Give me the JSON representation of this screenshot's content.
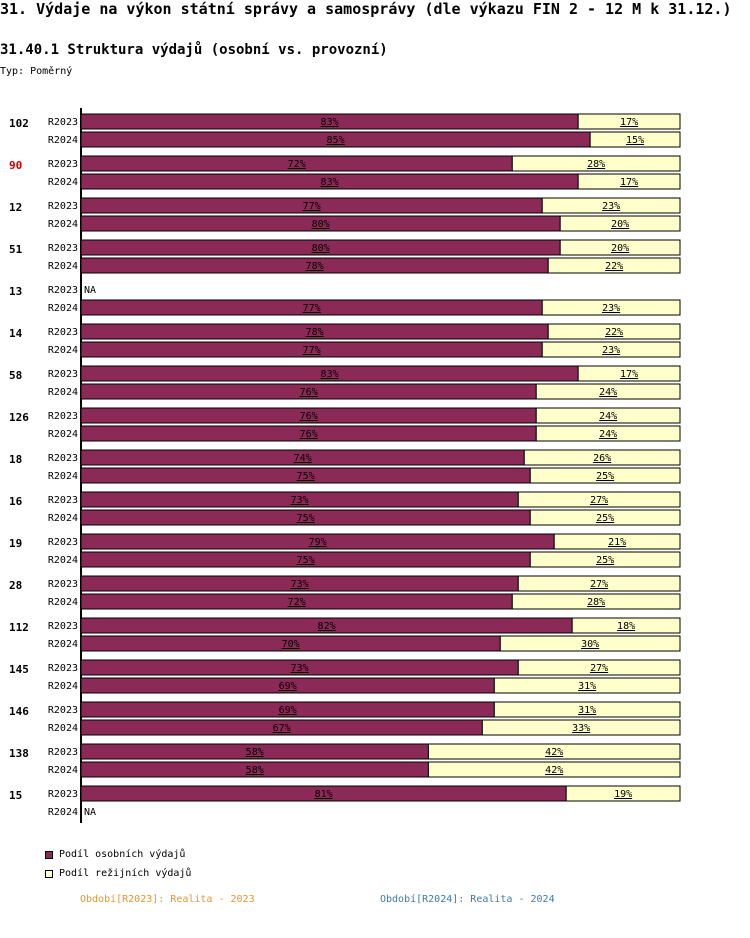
{
  "page": {
    "title": "31. Výdaje na výkon státní správy a samosprávy (dle výkazu FIN 2 - 12 M k 31.12.)",
    "subtitle": "31.40.1 Struktura výdajů (osobní vs. provozní)",
    "type_label": "Typ: Poměrný"
  },
  "legend": {
    "items": [
      {
        "label": "Podíl osobních výdajů",
        "color": "#8b2a56"
      },
      {
        "label": "Podíl režijních výdajů",
        "color": "#ffffcc"
      }
    ]
  },
  "periods": {
    "p2023": {
      "label": "Období[R2023]: Realita - 2023",
      "color": "#e8962e"
    },
    "p2024": {
      "label": "Období[R2024]: Realita - 2024",
      "color": "#3a7ca8"
    }
  },
  "chart_data": {
    "type": "bar",
    "orientation": "horizontal",
    "stacked": true,
    "normalized": true,
    "title": "31.40.1 Struktura výdajů (osobní vs. provozní)",
    "series_names": [
      "Podíl osobních výdajů",
      "Podíl režijních výdajů"
    ],
    "series_colors": [
      "#8b2a56",
      "#ffffcc"
    ],
    "na_label": "NA",
    "highlight_color": "#cc0000",
    "groups": [
      {
        "label": "102",
        "highlight": false,
        "rows": [
          {
            "period": "R2023",
            "values": [
              83,
              17
            ]
          },
          {
            "period": "R2024",
            "values": [
              85,
              15
            ]
          }
        ]
      },
      {
        "label": "90",
        "highlight": true,
        "rows": [
          {
            "period": "R2023",
            "values": [
              72,
              28
            ]
          },
          {
            "period": "R2024",
            "values": [
              83,
              17
            ]
          }
        ]
      },
      {
        "label": "12",
        "highlight": false,
        "rows": [
          {
            "period": "R2023",
            "values": [
              77,
              23
            ]
          },
          {
            "period": "R2024",
            "values": [
              80,
              20
            ]
          }
        ]
      },
      {
        "label": "51",
        "highlight": false,
        "rows": [
          {
            "period": "R2023",
            "values": [
              80,
              20
            ]
          },
          {
            "period": "R2024",
            "values": [
              78,
              22
            ]
          }
        ]
      },
      {
        "label": "13",
        "highlight": false,
        "rows": [
          {
            "period": "R2023",
            "values": null
          },
          {
            "period": "R2024",
            "values": [
              77,
              23
            ]
          }
        ]
      },
      {
        "label": "14",
        "highlight": false,
        "rows": [
          {
            "period": "R2023",
            "values": [
              78,
              22
            ]
          },
          {
            "period": "R2024",
            "values": [
              77,
              23
            ]
          }
        ]
      },
      {
        "label": "58",
        "highlight": false,
        "rows": [
          {
            "period": "R2023",
            "values": [
              83,
              17
            ]
          },
          {
            "period": "R2024",
            "values": [
              76,
              24
            ]
          }
        ]
      },
      {
        "label": "126",
        "highlight": false,
        "rows": [
          {
            "period": "R2023",
            "values": [
              76,
              24
            ]
          },
          {
            "period": "R2024",
            "values": [
              76,
              24
            ]
          }
        ]
      },
      {
        "label": "18",
        "highlight": false,
        "rows": [
          {
            "period": "R2023",
            "values": [
              74,
              26
            ]
          },
          {
            "period": "R2024",
            "values": [
              75,
              25
            ]
          }
        ]
      },
      {
        "label": "16",
        "highlight": false,
        "rows": [
          {
            "period": "R2023",
            "values": [
              73,
              27
            ]
          },
          {
            "period": "R2024",
            "values": [
              75,
              25
            ]
          }
        ]
      },
      {
        "label": "19",
        "highlight": false,
        "rows": [
          {
            "period": "R2023",
            "values": [
              79,
              21
            ]
          },
          {
            "period": "R2024",
            "values": [
              75,
              25
            ]
          }
        ]
      },
      {
        "label": "28",
        "highlight": false,
        "rows": [
          {
            "period": "R2023",
            "values": [
              73,
              27
            ]
          },
          {
            "period": "R2024",
            "values": [
              72,
              28
            ]
          }
        ]
      },
      {
        "label": "112",
        "highlight": false,
        "rows": [
          {
            "period": "R2023",
            "values": [
              82,
              18
            ]
          },
          {
            "period": "R2024",
            "values": [
              70,
              30
            ]
          }
        ]
      },
      {
        "label": "145",
        "highlight": false,
        "rows": [
          {
            "period": "R2023",
            "values": [
              73,
              27
            ]
          },
          {
            "period": "R2024",
            "values": [
              69,
              31
            ]
          }
        ]
      },
      {
        "label": "146",
        "highlight": false,
        "rows": [
          {
            "period": "R2023",
            "values": [
              69,
              31
            ]
          },
          {
            "period": "R2024",
            "values": [
              67,
              33
            ]
          }
        ]
      },
      {
        "label": "138",
        "highlight": false,
        "rows": [
          {
            "period": "R2023",
            "values": [
              58,
              42
            ]
          },
          {
            "period": "R2024",
            "values": [
              58,
              42
            ]
          }
        ]
      },
      {
        "label": "15",
        "highlight": false,
        "rows": [
          {
            "period": "R2023",
            "values": [
              81,
              19
            ]
          },
          {
            "period": "R2024",
            "values": null
          }
        ]
      }
    ]
  }
}
